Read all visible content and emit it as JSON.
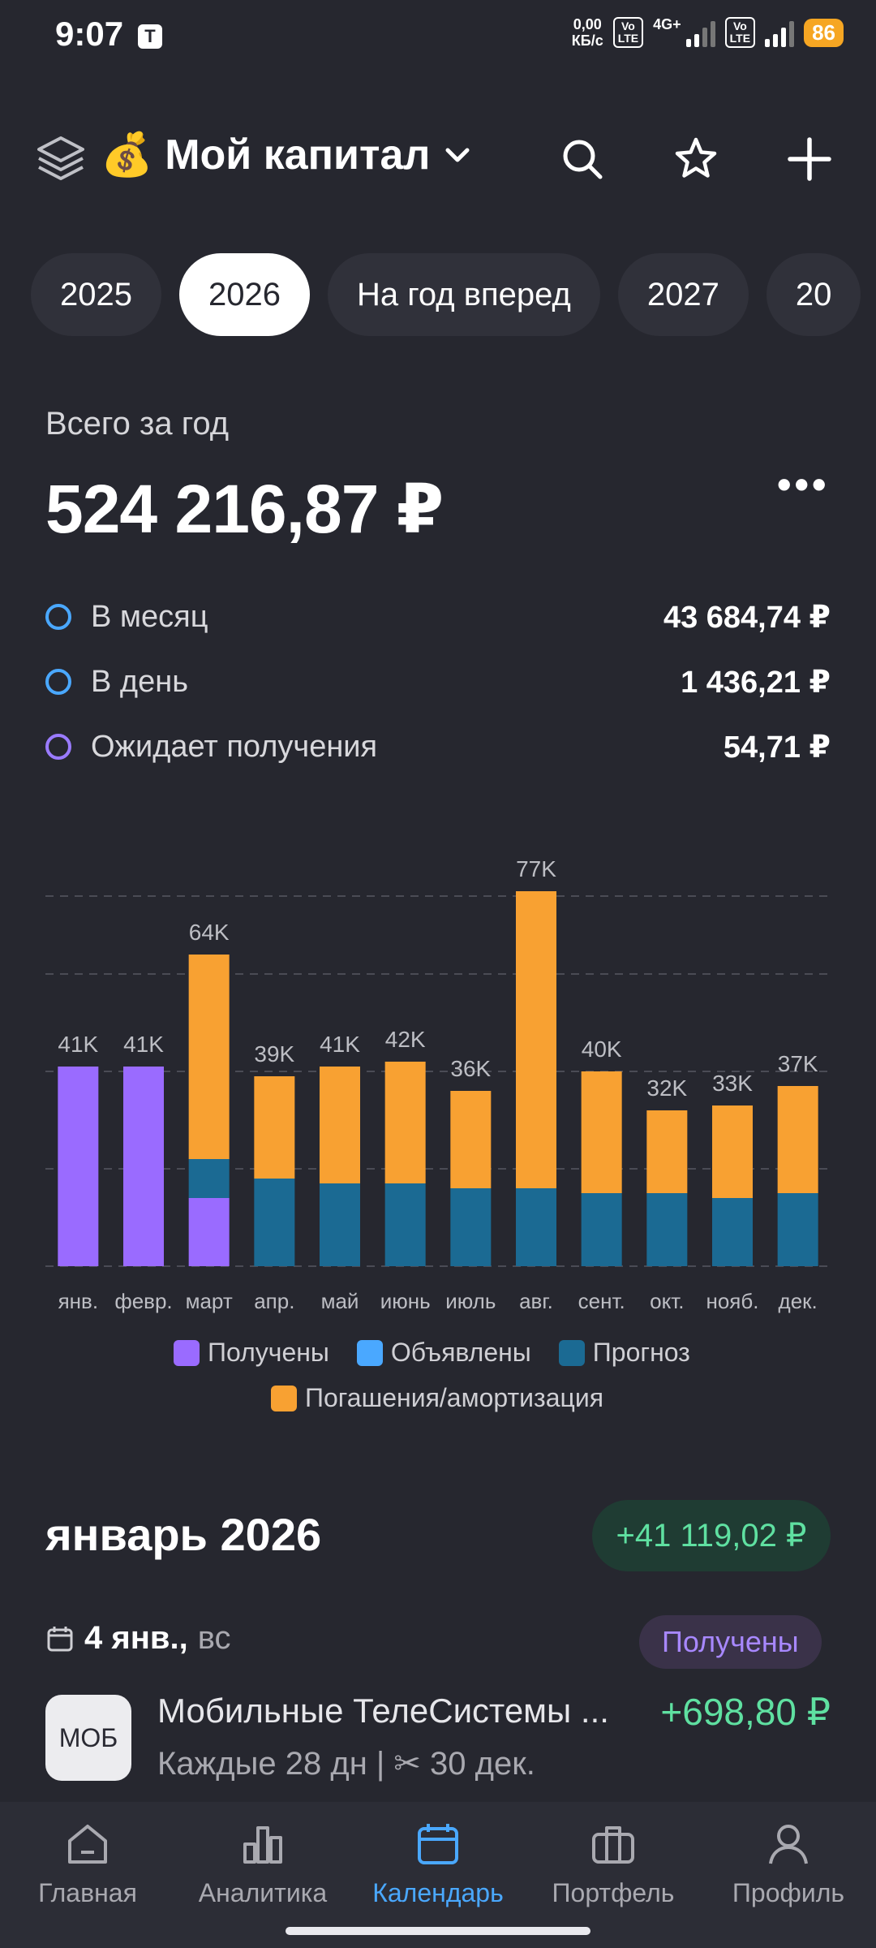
{
  "status_bar": {
    "time": "9:07",
    "speed_top": "0,00",
    "speed_bottom": "КБ/с",
    "volte1": "Vo\nLTE",
    "net": "4G+",
    "volte2": "Vo\nLTE",
    "battery": "86"
  },
  "header": {
    "title": "💰 Мой капитал",
    "icons": [
      "layers-icon",
      "chevron-down-icon",
      "search-icon",
      "star-icon",
      "plus-icon"
    ]
  },
  "year_tabs": [
    "2025",
    "2026",
    "На год вперед",
    "2027",
    "20"
  ],
  "active_year": "2026",
  "summary": {
    "label": "Всего за год",
    "total": "524 216,87 ₽",
    "rows": [
      {
        "name": "В месяц",
        "value": "43 684,74 ₽",
        "color": "#4aa8ff"
      },
      {
        "name": "В день",
        "value": "1 436,21 ₽",
        "color": "#4aa8ff"
      },
      {
        "name": "Ожидает получения",
        "value": "54,71 ₽",
        "color": "#9a7bff"
      }
    ]
  },
  "chart_data": {
    "type": "bar",
    "stacked": true,
    "categories": [
      "янв.",
      "февр.",
      "март",
      "апр.",
      "май",
      "июнь",
      "июль",
      "авг.",
      "сент.",
      "окт.",
      "нояб.",
      "дек."
    ],
    "labels": [
      "41K",
      "41K",
      "64K",
      "39K",
      "41K",
      "42K",
      "36K",
      "77K",
      "40K",
      "32K",
      "33K",
      "37K"
    ],
    "series": [
      {
        "name": "Получены",
        "color": "#9a6bff",
        "values": [
          41,
          41,
          14,
          0,
          0,
          0,
          0,
          0,
          0,
          0,
          0,
          0
        ]
      },
      {
        "name": "Объявлены",
        "color": "#4aa8ff",
        "values": [
          0,
          0,
          0,
          0,
          0,
          0,
          0,
          0,
          0,
          0,
          0,
          0
        ]
      },
      {
        "name": "Прогноз",
        "color": "#1b6a93",
        "values": [
          0,
          0,
          8,
          18,
          17,
          17,
          16,
          16,
          15,
          15,
          14,
          15
        ]
      },
      {
        "name": "Погашения/амортизация",
        "color": "#f8a132",
        "values": [
          0,
          0,
          42,
          21,
          24,
          25,
          20,
          61,
          25,
          17,
          19,
          22
        ]
      }
    ],
    "ylim": [
      0,
      80
    ],
    "grid": true
  },
  "month": {
    "title": "январь 2026",
    "total": "+41 119,02 ₽"
  },
  "event": {
    "date": "4 янв.,",
    "weekday": "вс",
    "status": "Получены",
    "ticker": "МОБ",
    "name": "Мобильные ТелеСистемы ...",
    "sub": "Каждые 28 дн | ✂ 30 дек.",
    "amount": "+698,80 ₽"
  },
  "bottom_nav": [
    {
      "label": "Главная",
      "icon": "home-icon"
    },
    {
      "label": "Аналитика",
      "icon": "analytics-icon"
    },
    {
      "label": "Календарь",
      "icon": "calendar-icon",
      "active": true
    },
    {
      "label": "Портфель",
      "icon": "briefcase-icon"
    },
    {
      "label": "Профиль",
      "icon": "profile-icon"
    }
  ]
}
